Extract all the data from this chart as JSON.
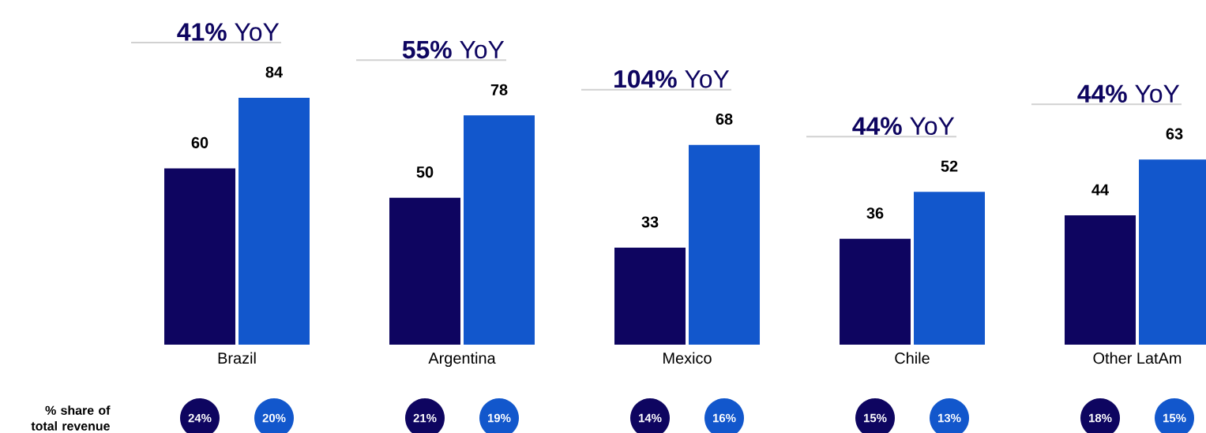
{
  "chart_data": {
    "type": "bar",
    "categories": [
      "Brazil",
      "Argentina",
      "Mexico",
      "Chile",
      "Other LatAm"
    ],
    "series": [
      {
        "color": "#0e0560",
        "values": [
          60,
          50,
          33,
          36,
          44
        ]
      },
      {
        "color": "#1257cc",
        "values": [
          84,
          78,
          68,
          52,
          63
        ]
      }
    ],
    "data_labels": true,
    "annotations": [
      "**41%** YoY",
      "**55%** YoY",
      "**104%** YoY",
      "**44%** YoY",
      "**44%** YoY",
      "% share of total revenue",
      "24%",
      "20%",
      "21%",
      "19%",
      "14%",
      "16%",
      "15%",
      "13%",
      "18%",
      "15%"
    ]
  }
}
